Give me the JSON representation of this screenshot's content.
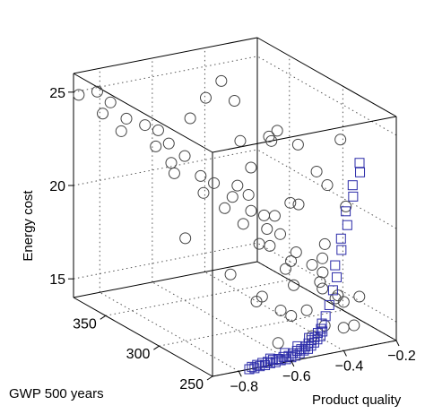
{
  "chart_data": {
    "type": "scatter",
    "title": "",
    "projection": "3d",
    "xlabel": "Product quality",
    "ylabel": "GWP 500 years",
    "zlabel": "Energy cost",
    "xlim": [
      -0.9,
      -0.2
    ],
    "ylim": [
      250,
      380
    ],
    "zlim": [
      14,
      26
    ],
    "xticks": [
      -0.8,
      -0.6,
      -0.4,
      -0.2
    ],
    "xtick_labels": [
      "−0.8",
      "−0.6",
      "−0.4",
      "−0.2"
    ],
    "yticks": [
      250,
      300,
      350
    ],
    "ytick_labels": [
      "250",
      "300",
      "350"
    ],
    "zticks": [
      15,
      20,
      25
    ],
    "ztick_labels": [
      "15",
      "20",
      "25"
    ],
    "grid": true,
    "legend": "none",
    "colors": {
      "circles": "#444444",
      "squares": "#2a2aa8",
      "box": "#000000",
      "grid": "#555555"
    },
    "series": [
      {
        "marker": "circle",
        "points": [
          [
            -0.88,
            380,
            24.8
          ],
          [
            -0.83,
            375,
            25.0
          ],
          [
            -0.8,
            370,
            24.5
          ],
          [
            -0.85,
            365,
            24.2
          ],
          [
            -0.78,
            360,
            23.9
          ],
          [
            -0.82,
            355,
            23.5
          ],
          [
            -0.75,
            350,
            23.8
          ],
          [
            -0.72,
            345,
            23.6
          ],
          [
            -0.7,
            340,
            23.0
          ],
          [
            -0.77,
            335,
            23.2
          ],
          [
            -0.68,
            330,
            22.6
          ],
          [
            -0.74,
            325,
            22.0
          ],
          [
            -0.66,
            320,
            21.8
          ],
          [
            -0.63,
            315,
            21.5
          ],
          [
            -0.69,
            310,
            21.3
          ],
          [
            -0.6,
            305,
            21.0
          ],
          [
            -0.65,
            300,
            20.7
          ],
          [
            -0.57,
            295,
            20.5
          ],
          [
            -0.62,
            290,
            20.1
          ],
          [
            -0.55,
            285,
            19.8
          ],
          [
            -0.52,
            280,
            19.6
          ],
          [
            -0.58,
            275,
            19.3
          ],
          [
            -0.5,
            270,
            18.9
          ],
          [
            -0.54,
            265,
            18.7
          ],
          [
            -0.48,
            260,
            18.5
          ],
          [
            -0.46,
            255,
            18.2
          ],
          [
            -0.7,
            320,
            25.0
          ],
          [
            -0.6,
            330,
            25.5
          ],
          [
            -0.5,
            340,
            25.8
          ],
          [
            -0.45,
            300,
            24.3
          ],
          [
            -0.55,
            310,
            23.7
          ],
          [
            -0.4,
            320,
            23.2
          ],
          [
            -0.35,
            330,
            22.5
          ],
          [
            -0.3,
            290,
            21.3
          ],
          [
            -0.45,
            280,
            21.0
          ],
          [
            -0.5,
            300,
            19.9
          ],
          [
            -0.6,
            280,
            19.3
          ],
          [
            -0.55,
            260,
            17.6
          ],
          [
            -0.65,
            265,
            17.1
          ],
          [
            -0.52,
            275,
            17.9
          ],
          [
            -0.42,
            265,
            16.9
          ],
          [
            -0.38,
            255,
            16.4
          ],
          [
            -0.33,
            275,
            15.8
          ],
          [
            -0.28,
            285,
            15.5
          ],
          [
            -0.3,
            265,
            14.6
          ],
          [
            -0.36,
            260,
            14.8
          ],
          [
            -0.44,
            258,
            15.2
          ],
          [
            -0.48,
            265,
            15.9
          ],
          [
            -0.58,
            255,
            16.2
          ],
          [
            -0.62,
            255,
            16.6
          ],
          [
            -0.7,
            258,
            17.2
          ],
          [
            -0.75,
            270,
            18.4
          ],
          [
            -0.8,
            300,
            19.5
          ],
          [
            -0.65,
            350,
            21.5
          ],
          [
            -0.52,
            320,
            20.9
          ],
          [
            -0.4,
            300,
            20.3
          ],
          [
            -0.33,
            310,
            22.9
          ],
          [
            -0.3,
            300,
            21.7
          ],
          [
            -0.27,
            280,
            20.4
          ],
          [
            -0.25,
            290,
            23.6
          ],
          [
            -0.45,
            340,
            24.6
          ],
          [
            -0.55,
            300,
            22.6
          ],
          [
            -0.6,
            290,
            21.6
          ],
          [
            -0.5,
            290,
            20.2
          ],
          [
            -0.4,
            270,
            18.3
          ],
          [
            -0.35,
            280,
            18.6
          ],
          [
            -0.3,
            260,
            16.3
          ],
          [
            -0.45,
            260,
            17.5
          ],
          [
            -0.5,
            255,
            14.9
          ],
          [
            -0.65,
            250,
            15.1
          ]
        ]
      },
      {
        "marker": "square",
        "points": [
          [
            -0.34,
            250,
            23.9
          ],
          [
            -0.33,
            252,
            23.3
          ],
          [
            -0.35,
            254,
            22.6
          ],
          [
            -0.34,
            256,
            21.9
          ],
          [
            -0.36,
            258,
            21.1
          ],
          [
            -0.35,
            259,
            20.3
          ],
          [
            -0.37,
            260,
            19.6
          ],
          [
            -0.36,
            262,
            18.9
          ],
          [
            -0.38,
            263,
            18.1
          ],
          [
            -0.37,
            264,
            17.4
          ],
          [
            -0.38,
            265,
            16.7
          ],
          [
            -0.39,
            266,
            15.9
          ],
          [
            -0.4,
            267,
            15.3
          ],
          [
            -0.41,
            268,
            14.9
          ],
          [
            -0.42,
            265,
            14.6
          ],
          [
            -0.44,
            262,
            14.5
          ],
          [
            -0.46,
            260,
            14.45
          ],
          [
            -0.48,
            258,
            14.4
          ],
          [
            -0.5,
            256,
            14.35
          ],
          [
            -0.52,
            254,
            14.3
          ],
          [
            -0.54,
            253,
            14.3
          ],
          [
            -0.56,
            252,
            14.25
          ],
          [
            -0.58,
            251,
            14.2
          ],
          [
            -0.6,
            250,
            14.2
          ],
          [
            -0.62,
            250,
            14.15
          ],
          [
            -0.64,
            250,
            14.15
          ],
          [
            -0.66,
            250,
            14.1
          ],
          [
            -0.68,
            250,
            14.1
          ],
          [
            -0.7,
            250,
            14.05
          ],
          [
            -0.72,
            250,
            14.05
          ],
          [
            -0.74,
            250,
            14.0
          ],
          [
            -0.76,
            250,
            14.0
          ],
          [
            -0.45,
            262,
            14.7
          ],
          [
            -0.47,
            260,
            14.6
          ],
          [
            -0.49,
            258,
            14.55
          ],
          [
            -0.51,
            256,
            14.5
          ],
          [
            -0.53,
            254,
            14.45
          ],
          [
            -0.55,
            253,
            14.4
          ],
          [
            -0.57,
            252,
            14.4
          ],
          [
            -0.59,
            251,
            14.35
          ],
          [
            -0.61,
            250,
            14.3
          ],
          [
            -0.63,
            250,
            14.3
          ],
          [
            -0.65,
            250,
            14.25
          ],
          [
            -0.67,
            250,
            14.25
          ],
          [
            -0.69,
            250,
            14.2
          ],
          [
            -0.71,
            250,
            14.2
          ],
          [
            -0.43,
            264,
            14.8
          ],
          [
            -0.5,
            258,
            14.7
          ],
          [
            -0.56,
            254,
            14.55
          ],
          [
            -0.62,
            251,
            14.45
          ],
          [
            -0.68,
            250,
            14.35
          ],
          [
            -0.73,
            250,
            14.15
          ],
          [
            -0.75,
            250,
            14.1
          ]
        ]
      }
    ]
  }
}
